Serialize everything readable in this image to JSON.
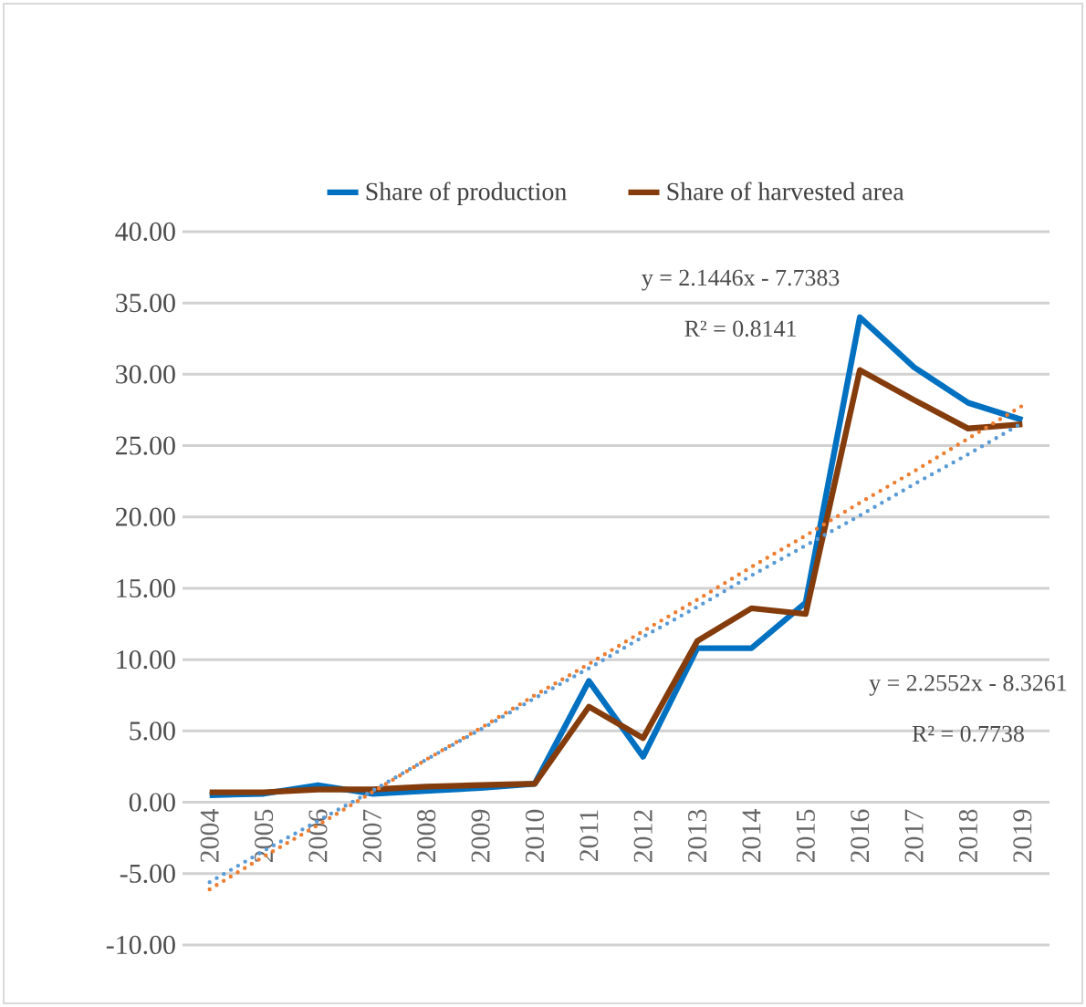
{
  "chart_data": {
    "type": "line",
    "categories": [
      "2004",
      "2005",
      "2006",
      "2007",
      "2008",
      "2009",
      "2010",
      "2011",
      "2012",
      "2013",
      "2014",
      "2015",
      "2016",
      "2017",
      "2018",
      "2019"
    ],
    "series": [
      {
        "name": "Share of production",
        "color": "#0070c0",
        "values": [
          0.5,
          0.6,
          1.2,
          0.6,
          0.8,
          1.0,
          1.3,
          8.5,
          3.2,
          10.8,
          10.8,
          14.0,
          34.0,
          30.5,
          28.0,
          26.8
        ]
      },
      {
        "name": "Share of harvested area",
        "color": "#843c0c",
        "values": [
          0.7,
          0.7,
          0.9,
          0.9,
          1.1,
          1.2,
          1.3,
          6.7,
          4.5,
          11.3,
          13.6,
          13.2,
          30.3,
          28.2,
          26.2,
          26.5
        ]
      },
      {
        "type": "line",
        "color": "#5b9bd5",
        "line_style": "dotted",
        "values": [
          -5.6,
          -3.4,
          -1.3,
          0.8,
          3.0,
          5.1,
          7.3,
          9.4,
          11.6,
          13.7,
          15.9,
          18.0,
          20.1,
          22.3,
          24.4,
          26.6
        ]
      },
      {
        "type": "line",
        "color": "#ed7d31",
        "line_style": "dotted",
        "values": [
          -6.1,
          -3.8,
          -1.6,
          0.7,
          3.0,
          5.2,
          7.5,
          9.7,
          12.0,
          14.2,
          16.5,
          18.7,
          21.0,
          23.2,
          25.5,
          27.8
        ]
      }
    ],
    "ylim": [
      -10,
      40
    ],
    "yticks": [
      {
        "value": -10,
        "label": "-10.00"
      },
      {
        "value": -5,
        "label": "-5.00"
      },
      {
        "value": 0,
        "label": "0.00"
      },
      {
        "value": 5,
        "label": "5.00"
      },
      {
        "value": 10,
        "label": "10.00"
      },
      {
        "value": 15,
        "label": "15.00"
      },
      {
        "value": 20,
        "label": "20.00"
      },
      {
        "value": 25,
        "label": "25.00"
      },
      {
        "value": 30,
        "label": "30.00"
      },
      {
        "value": 35,
        "label": "35.00"
      },
      {
        "value": 40,
        "label": "40.00"
      }
    ],
    "grid": "y",
    "legend": "top",
    "marker": "none",
    "line_style": "solid",
    "annotations": [
      "y = 2.1446x - 7.7383",
      "R² = 0.8141",
      "y = 2.2552x - 8.3261",
      "R² = 0.7738"
    ]
  }
}
